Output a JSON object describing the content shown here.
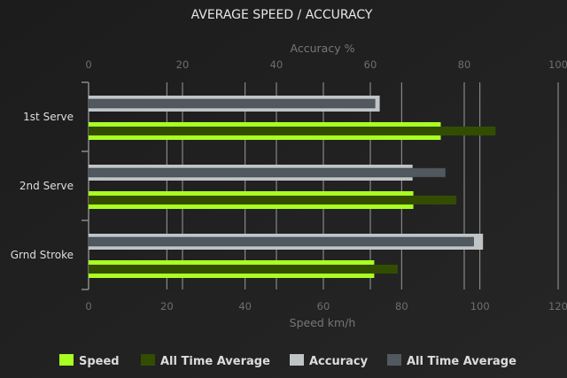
{
  "chart_data": {
    "type": "bar",
    "orientation": "horizontal",
    "title": "AVERAGE SPEED / ACCURACY",
    "categories": [
      "1st Serve",
      "2nd Serve",
      "Grnd Stroke"
    ],
    "top_axis": {
      "label": "Accuracy %",
      "range": [
        0,
        100
      ],
      "ticks": [
        0,
        20,
        40,
        60,
        80,
        100
      ]
    },
    "bottom_axis": {
      "label": "Speed km/h",
      "range": [
        0,
        120
      ],
      "ticks": [
        0,
        20,
        40,
        60,
        80,
        100,
        120
      ]
    },
    "grid": true,
    "legend_position": "bottom",
    "series": [
      {
        "name": "Speed",
        "axis": "bottom",
        "color": "#aaff22",
        "values": [
          90,
          83,
          73
        ]
      },
      {
        "name": "All Time Average",
        "axis": "bottom",
        "color": "#334d00",
        "values": [
          104,
          94,
          79
        ]
      },
      {
        "name": "Accuracy",
        "axis": "top",
        "color": "#bfc4c7",
        "values": [
          62,
          69,
          84
        ]
      },
      {
        "name": "All Time Average",
        "axis": "top",
        "color": "#525860",
        "values": [
          61,
          76,
          82
        ]
      }
    ]
  }
}
